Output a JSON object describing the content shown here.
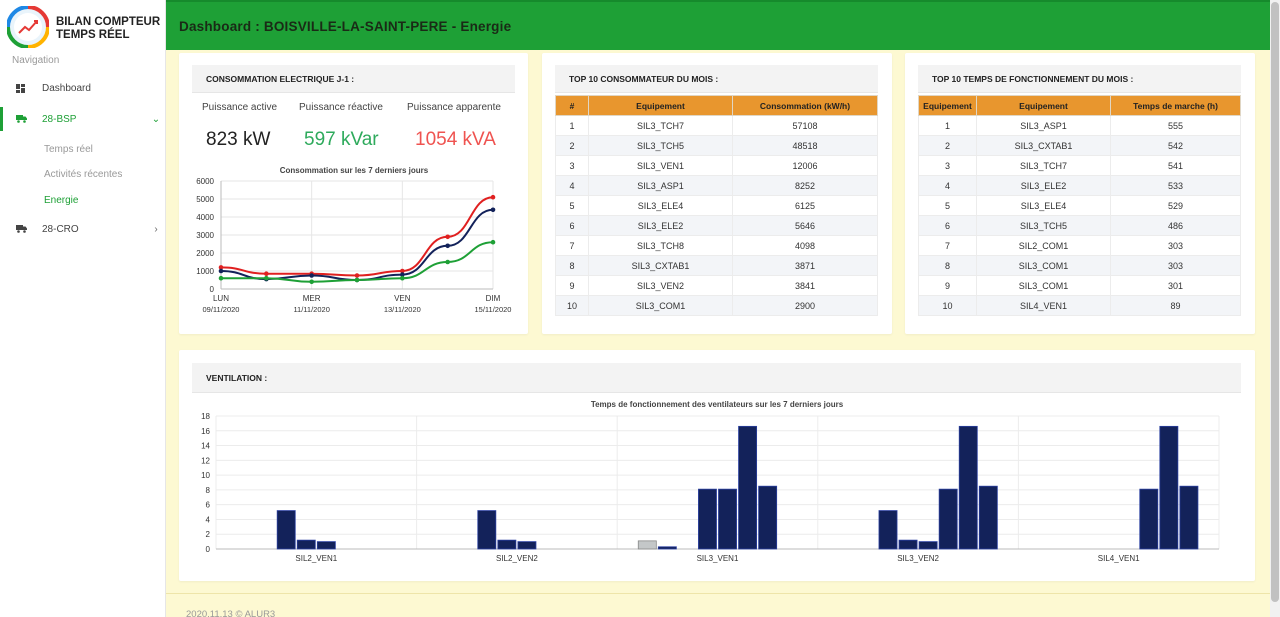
{
  "brand": {
    "title_line1": "BILAN COMPTEUR",
    "title_line2": "TEMPS RÉEL"
  },
  "sidebar": {
    "heading": "Navigation",
    "items": [
      {
        "label": "Dashboard",
        "icon": "dashboard-icon"
      },
      {
        "label": "28-BSP",
        "icon": "truck-icon",
        "chevron": "⌄"
      },
      {
        "label": "28-CRO",
        "icon": "truck-icon",
        "chevron": "›"
      }
    ],
    "sub_items": [
      "Temps réel",
      "Activités récentes",
      "Energie"
    ]
  },
  "header": {
    "title": "Dashboard : BOISVILLE-LA-SAINT-PERE - Energie"
  },
  "colors": {
    "green": "#1ea036",
    "orange": "#e8962e",
    "navy": "#13225a",
    "red": "#e53935",
    "value_green": "#2eaa5c",
    "value_red": "#ef5350"
  },
  "conso": {
    "title": "CONSOMMATION ELECTRIQUE J-1 :",
    "labels": [
      "Puissance active",
      "Puissance réactive",
      "Puissance apparente"
    ],
    "values": [
      "823 kW",
      "597 kVar",
      "1054 kVA"
    ]
  },
  "top_conso": {
    "title": "TOP 10 CONSOMMATEUR DU MOIS :",
    "headers": [
      "#",
      "Equipement",
      "Consommation (kW/h)"
    ],
    "rows": [
      [
        "1",
        "SIL3_TCH7",
        "57108"
      ],
      [
        "2",
        "SIL3_TCH5",
        "48518"
      ],
      [
        "3",
        "SIL3_VEN1",
        "12006"
      ],
      [
        "4",
        "SIL3_ASP1",
        "8252"
      ],
      [
        "5",
        "SIL3_ELE4",
        "6125"
      ],
      [
        "6",
        "SIL3_ELE2",
        "5646"
      ],
      [
        "7",
        "SIL3_TCH8",
        "4098"
      ],
      [
        "8",
        "SIL3_CXTAB1",
        "3871"
      ],
      [
        "9",
        "SIL3_VEN2",
        "3841"
      ],
      [
        "10",
        "SIL3_COM1",
        "2900"
      ]
    ]
  },
  "top_time": {
    "title": "TOP 10 TEMPS DE FONCTIONNEMENT DU MOIS :",
    "headers": [
      "Equipement",
      "Equipement",
      "Temps de marche (h)"
    ],
    "rows": [
      [
        "1",
        "SIL3_ASP1",
        "555"
      ],
      [
        "2",
        "SIL3_CXTAB1",
        "542"
      ],
      [
        "3",
        "SIL3_TCH7",
        "541"
      ],
      [
        "4",
        "SIL3_ELE2",
        "533"
      ],
      [
        "5",
        "SIL3_ELE4",
        "529"
      ],
      [
        "6",
        "SIL3_TCH5",
        "486"
      ],
      [
        "7",
        "SIL2_COM1",
        "303"
      ],
      [
        "8",
        "SIL3_COM1",
        "303"
      ],
      [
        "9",
        "SIL3_COM1",
        "301"
      ],
      [
        "10",
        "SIL4_VEN1",
        "89"
      ]
    ]
  },
  "ventilation": {
    "title": "VENTILATION :"
  },
  "footer": {
    "text": "2020.11.13 © ALUR3"
  },
  "chart_data": [
    {
      "type": "line",
      "title": "Consommation sur les 7 derniers jours",
      "x": [
        "09/11/2020",
        "10/11/2020",
        "11/11/2020",
        "12/11/2020",
        "13/11/2020",
        "14/11/2020",
        "15/11/2020"
      ],
      "x_tick_labels": [
        {
          "day": "LUN",
          "date": "09/11/2020"
        },
        {
          "day": "MER",
          "date": "11/11/2020"
        },
        {
          "day": "VEN",
          "date": "13/11/2020"
        },
        {
          "day": "DIM",
          "date": "15/11/2020"
        }
      ],
      "ylim": [
        0,
        6000
      ],
      "yticks": [
        0,
        1000,
        2000,
        3000,
        4000,
        5000,
        6000
      ],
      "grid": true,
      "series": [
        {
          "color": "#e02020",
          "values": [
            1200,
            850,
            850,
            750,
            1000,
            2900,
            5100
          ]
        },
        {
          "color": "#13225a",
          "values": [
            1000,
            550,
            750,
            500,
            800,
            2400,
            4400
          ]
        },
        {
          "color": "#1ea036",
          "values": [
            600,
            600,
            400,
            500,
            600,
            1500,
            2600
          ]
        }
      ]
    },
    {
      "type": "bar",
      "title": "Temps de fonctionnement des ventilateurs sur les 7 derniers jours",
      "categories": [
        "SIL2_VEN1",
        "SIL2_VEN2",
        "SIL3_VEN1",
        "SIL3_VEN2",
        "SIL4_VEN1"
      ],
      "ylim": [
        0,
        18
      ],
      "yticks": [
        0,
        2,
        4,
        6,
        8,
        10,
        12,
        14,
        16,
        18
      ],
      "grid": true,
      "series": [
        {
          "color": "#c4c7c8",
          "values": [
            0,
            0,
            1.1,
            0,
            0
          ]
        },
        {
          "color": "#13225a",
          "values": [
            0,
            0,
            0.3,
            0,
            0
          ]
        },
        {
          "color": "#13225a",
          "values": [
            5.2,
            5.2,
            0,
            5.2,
            0
          ]
        },
        {
          "color": "#13225a",
          "values": [
            1.2,
            1.2,
            8.1,
            1.2,
            0
          ]
        },
        {
          "color": "#13225a",
          "values": [
            1.0,
            1.0,
            8.1,
            1.0,
            0
          ]
        },
        {
          "color": "#13225a",
          "values": [
            0,
            0,
            16.6,
            8.1,
            8.1
          ]
        },
        {
          "color": "#13225a",
          "values": [
            0,
            0,
            8.5,
            16.6,
            16.6
          ]
        },
        {
          "color": "#13225a",
          "values": [
            0,
            0,
            0,
            8.5,
            8.5
          ]
        }
      ]
    }
  ]
}
